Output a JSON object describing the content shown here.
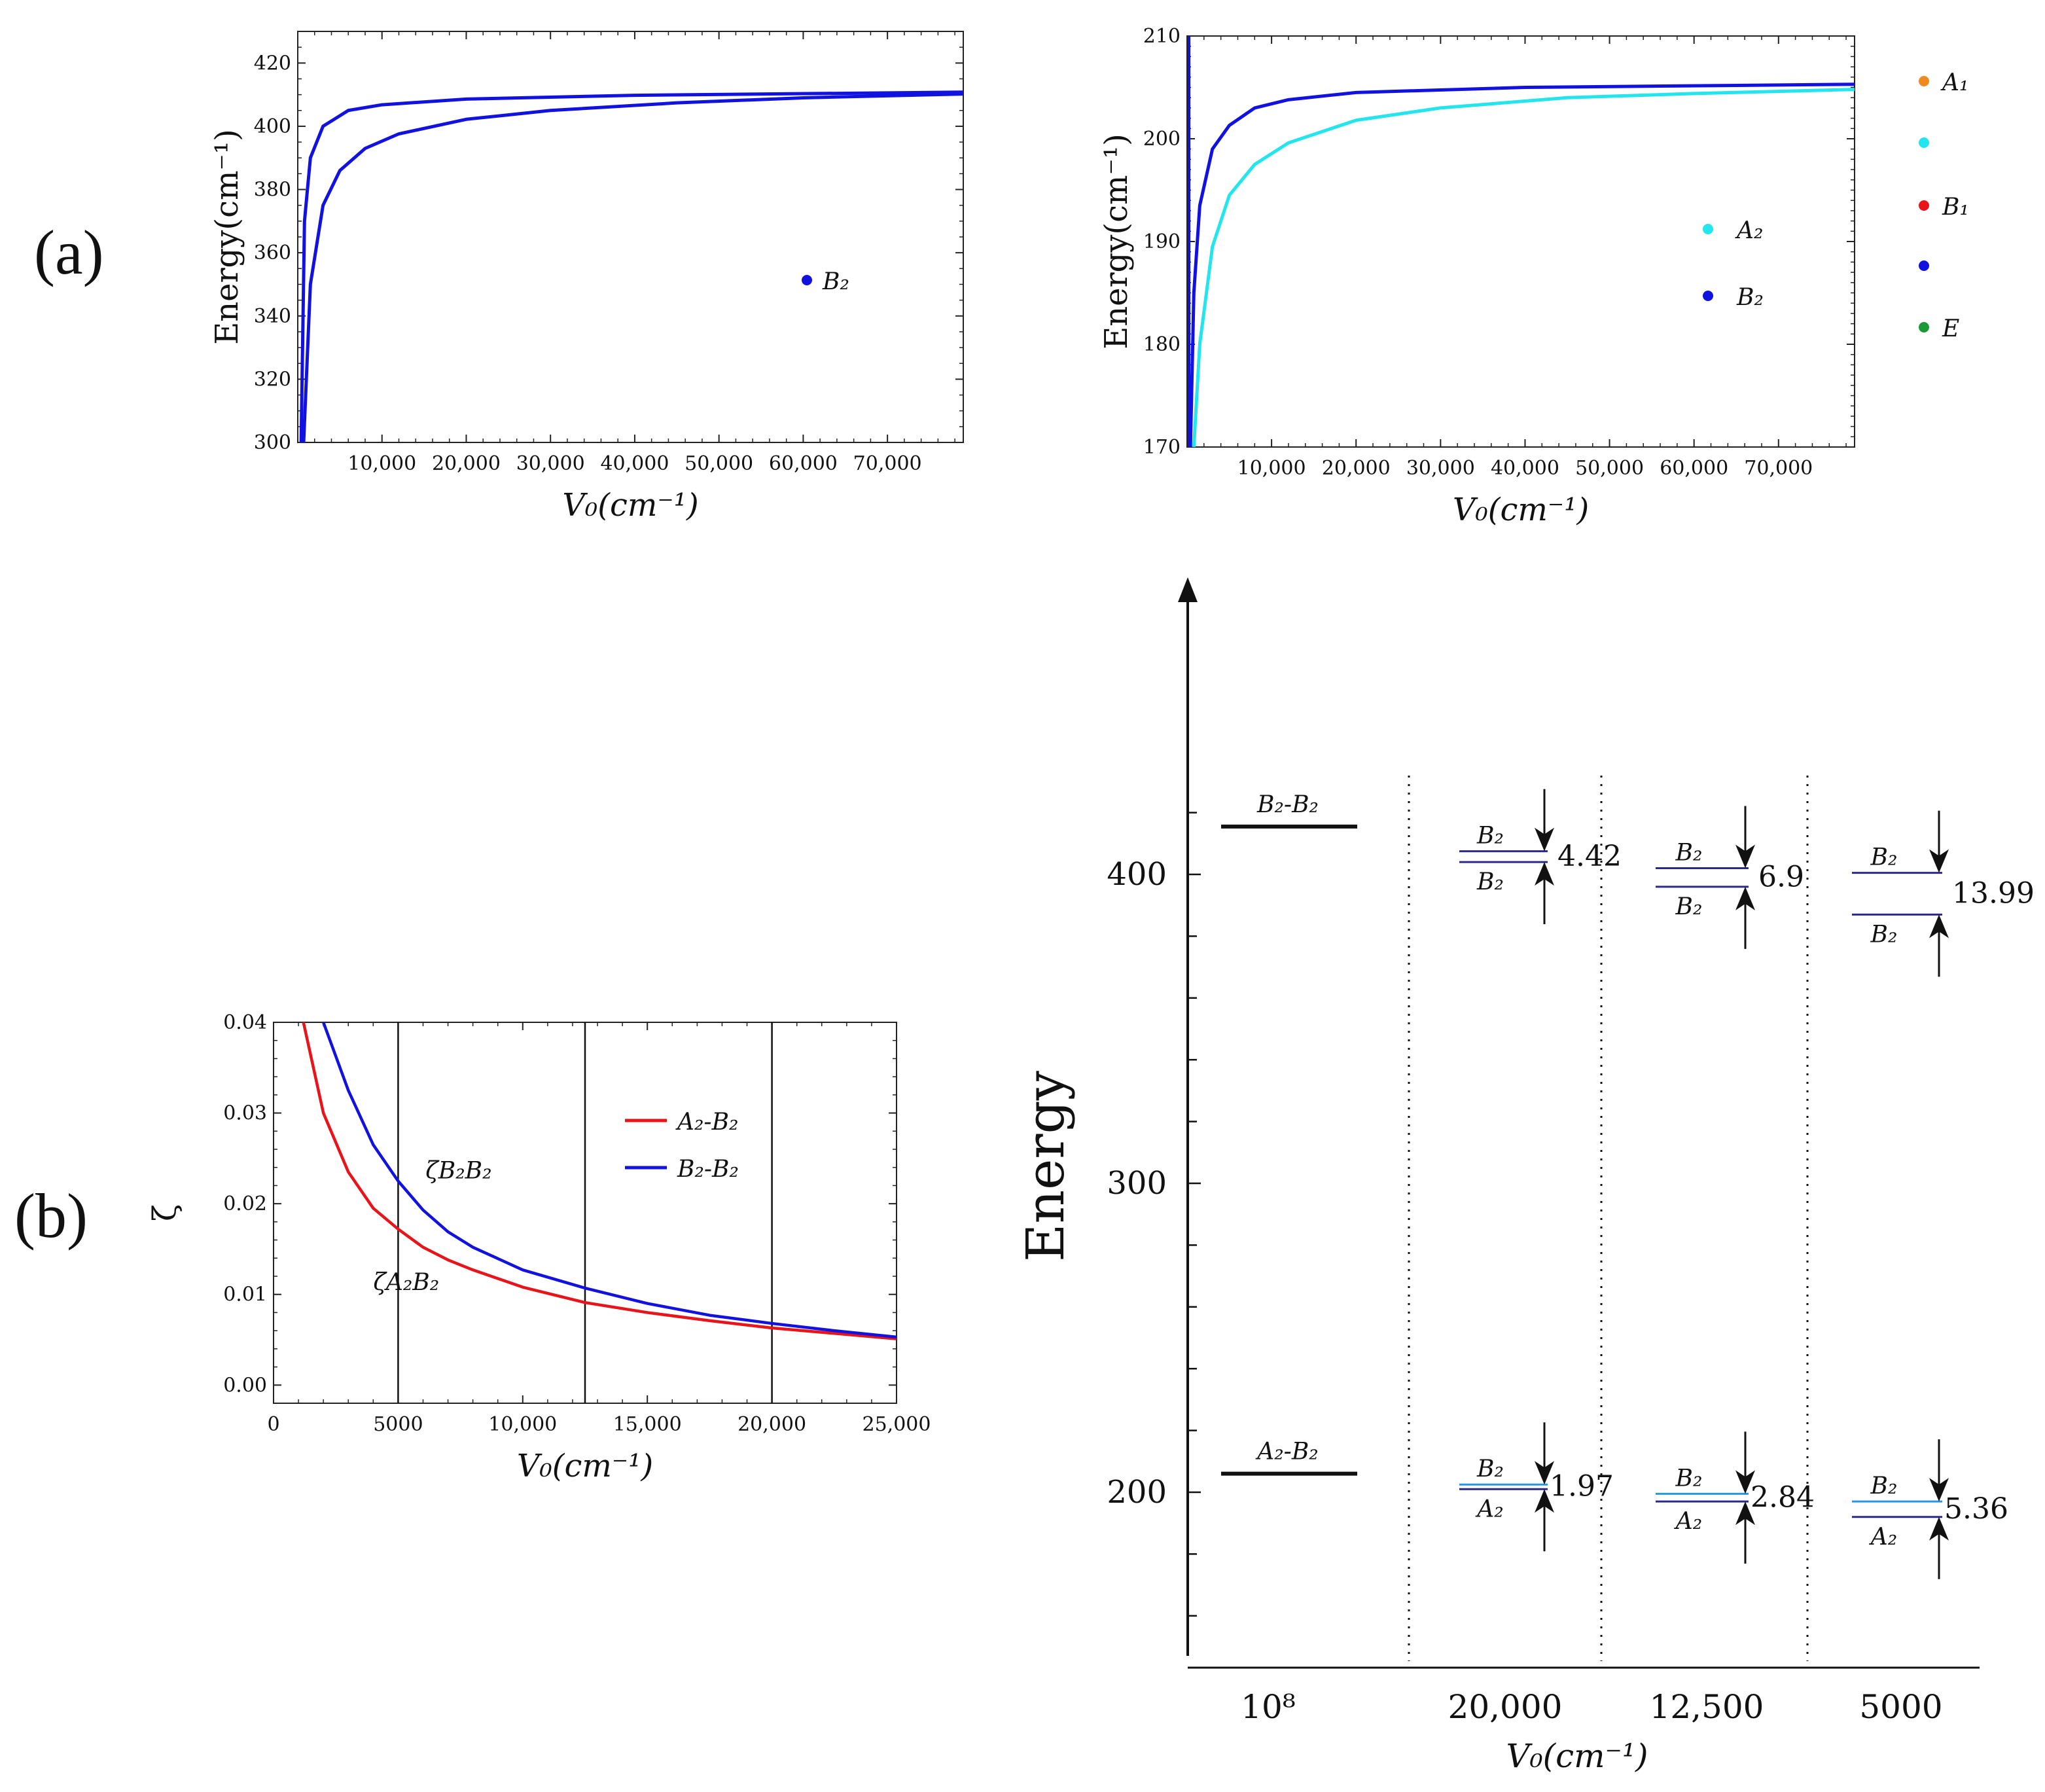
{
  "panel_labels": {
    "a": "(a)",
    "b": "(b)"
  },
  "chart_data": [
    {
      "id": "a-left",
      "type": "line",
      "xlabel": "V₀(cm⁻¹)",
      "ylabel": "Energy(cm⁻¹)",
      "xlim": [
        0,
        79000
      ],
      "ylim": [
        300,
        430
      ],
      "x_ticks": [
        10000,
        20000,
        30000,
        40000,
        50000,
        60000,
        70000
      ],
      "x_tick_labels": [
        "10,000",
        "20,000",
        "30,000",
        "40,000",
        "50,000",
        "60,000",
        "70,000"
      ],
      "y_ticks": [
        300,
        320,
        340,
        360,
        380,
        400,
        420
      ],
      "y_tick_labels": [
        "300",
        "320",
        "340",
        "360",
        "380",
        "400",
        "420"
      ],
      "legend": [
        {
          "label": "B₂",
          "color": "#1212e0"
        }
      ],
      "series": [
        {
          "color": "#1212e0",
          "points": [
            [
              400,
              300
            ],
            [
              800,
              370
            ],
            [
              1500,
              390
            ],
            [
              3000,
              400
            ],
            [
              6000,
              405
            ],
            [
              10000,
              406.8
            ],
            [
              20000,
              408.6
            ],
            [
              40000,
              409.8
            ],
            [
              79000,
              410.8
            ]
          ]
        },
        {
          "color": "#1212e0",
          "points": [
            [
              700,
              300
            ],
            [
              1500,
              350
            ],
            [
              3000,
              375
            ],
            [
              5000,
              386
            ],
            [
              8000,
              393
            ],
            [
              12000,
              397.6
            ],
            [
              20000,
              402.2
            ],
            [
              30000,
              405
            ],
            [
              45000,
              407.4
            ],
            [
              60000,
              409
            ],
            [
              79000,
              410.2
            ]
          ]
        }
      ]
    },
    {
      "id": "a-right",
      "type": "line",
      "xlabel": "V₀(cm⁻¹)",
      "ylabel": "Energy(cm⁻¹)",
      "xlim": [
        0,
        79000
      ],
      "ylim": [
        170,
        210
      ],
      "x_ticks": [
        10000,
        20000,
        30000,
        40000,
        50000,
        60000,
        70000
      ],
      "x_tick_labels": [
        "10,000",
        "20,000",
        "30,000",
        "40,000",
        "50,000",
        "60,000",
        "70,000"
      ],
      "y_ticks": [
        170,
        180,
        190,
        200,
        210
      ],
      "y_tick_labels": [
        "170",
        "180",
        "190",
        "200",
        "210"
      ],
      "legend": [
        {
          "label": "A₂",
          "color": "#22e5ee"
        },
        {
          "label": "B₂",
          "color": "#1212e0"
        }
      ],
      "series": [
        {
          "name": "A₂",
          "color": "#22e5ee",
          "points": [
            [
              800,
              170
            ],
            [
              1500,
              180
            ],
            [
              3000,
              189.5
            ],
            [
              5000,
              194.5
            ],
            [
              8000,
              197.5
            ],
            [
              12000,
              199.6
            ],
            [
              20000,
              201.8
            ],
            [
              30000,
              203
            ],
            [
              45000,
              204
            ],
            [
              60000,
              204.4
            ],
            [
              79000,
              204.8
            ]
          ]
        },
        {
          "name": "B₂",
          "color": "#1212e0",
          "points": [
            [
              400,
              170
            ],
            [
              800,
              185
            ],
            [
              1500,
              193.5
            ],
            [
              3000,
              199
            ],
            [
              5000,
              201.3
            ],
            [
              8000,
              203
            ],
            [
              12000,
              203.8
            ],
            [
              20000,
              204.5
            ],
            [
              40000,
              205
            ],
            [
              79000,
              205.3
            ]
          ]
        }
      ]
    },
    {
      "id": "b",
      "type": "line",
      "xlabel": "V₀(cm⁻¹)",
      "ylabel": "ζ",
      "xlim": [
        0,
        25000
      ],
      "ylim": [
        -0.002,
        0.04
      ],
      "x_ticks": [
        0,
        5000,
        10000,
        15000,
        20000,
        25000
      ],
      "x_tick_labels": [
        "0",
        "5000",
        "10,000",
        "15,000",
        "20,000",
        "25,000"
      ],
      "y_ticks": [
        0,
        0.01,
        0.02,
        0.03,
        0.04
      ],
      "y_tick_labels": [
        "0.00",
        "0.01",
        "0.02",
        "0.03",
        "0.04"
      ],
      "vlines": [
        5000,
        12500,
        20000
      ],
      "legend": [
        {
          "label": "A₂-B₂",
          "color": "#e8141a"
        },
        {
          "label": "B₂-B₂",
          "color": "#1212e0"
        }
      ],
      "annotations": [
        {
          "text": "ζB₂B₂",
          "color": "#2a2a9a",
          "x": 6100,
          "y": 0.0228
        },
        {
          "text": "ζA₂B₂",
          "color": "#e8141a",
          "x": 4000,
          "y": 0.0105
        }
      ],
      "series": [
        {
          "name": "A₂-B₂",
          "color": "#e8141a",
          "points": [
            [
              1200,
              0.04
            ],
            [
              2000,
              0.03
            ],
            [
              3000,
              0.0235
            ],
            [
              4000,
              0.0195
            ],
            [
              5000,
              0.0172
            ],
            [
              6000,
              0.0152
            ],
            [
              7000,
              0.0138
            ],
            [
              8000,
              0.0127
            ],
            [
              10000,
              0.0108
            ],
            [
              12500,
              0.0091
            ],
            [
              15000,
              0.008
            ],
            [
              17500,
              0.0071
            ],
            [
              20000,
              0.0063
            ],
            [
              22500,
              0.0057
            ],
            [
              25000,
              0.0051
            ]
          ]
        },
        {
          "name": "B₂-B₂",
          "color": "#1212e0",
          "points": [
            [
              2000,
              0.04
            ],
            [
              3000,
              0.0325
            ],
            [
              4000,
              0.0265
            ],
            [
              5000,
              0.0225
            ],
            [
              6000,
              0.0193
            ],
            [
              7000,
              0.0169
            ],
            [
              8000,
              0.0152
            ],
            [
              10000,
              0.0127
            ],
            [
              12500,
              0.0107
            ],
            [
              15000,
              0.009
            ],
            [
              17500,
              0.0077
            ],
            [
              20000,
              0.0068
            ],
            [
              22500,
              0.006
            ],
            [
              25000,
              0.0053
            ]
          ]
        }
      ]
    },
    {
      "id": "c",
      "type": "level-diagram",
      "ylabel": "Energy",
      "xlabel": "V₀(cm⁻¹)",
      "ylim": [
        150,
        460
      ],
      "y_ticks": [
        200,
        300,
        400
      ],
      "y_tick_labels": [
        "200",
        "300",
        "400"
      ],
      "columns": [
        {
          "label": "10⁸",
          "levels": [
            {
              "energy": 415.5,
              "label": "B₂-B₂",
              "color": "#111111"
            },
            {
              "energy": 206,
              "label": "A₂-B₂",
              "color": "#111111"
            }
          ]
        },
        {
          "label": "20,000",
          "upper": {
            "top": 407.5,
            "bottom": 404,
            "top_label": "B₂",
            "bottom_label": "B₂",
            "gap": "4.42"
          },
          "lower": {
            "top": 202.5,
            "bottom": 201,
            "top_label": "B₂",
            "bottom_label": "A₂",
            "gap": "1.97"
          }
        },
        {
          "label": "12,500",
          "upper": {
            "top": 402,
            "bottom": 396,
            "top_label": "B₂",
            "bottom_label": "B₂",
            "gap": "6.9"
          },
          "lower": {
            "top": 199.5,
            "bottom": 197,
            "top_label": "B₂",
            "bottom_label": "A₂",
            "gap": "2.84"
          }
        },
        {
          "label": "5000",
          "upper": {
            "top": 400.5,
            "bottom": 387,
            "top_label": "B₂",
            "bottom_label": "B₂",
            "gap": "13.99"
          },
          "lower": {
            "top": 197,
            "bottom": 192,
            "top_label": "B₂",
            "bottom_label": "A₂",
            "gap": "5.36"
          }
        }
      ]
    }
  ],
  "side_legend": [
    {
      "label": "A₁",
      "color": "#f08a1e"
    },
    {
      "label": "",
      "color": "#22e5ee"
    },
    {
      "label": "B₁",
      "color": "#e8141a"
    },
    {
      "label": "",
      "color": "#1212e0"
    },
    {
      "label": "E",
      "color": "#1a9a35"
    }
  ]
}
